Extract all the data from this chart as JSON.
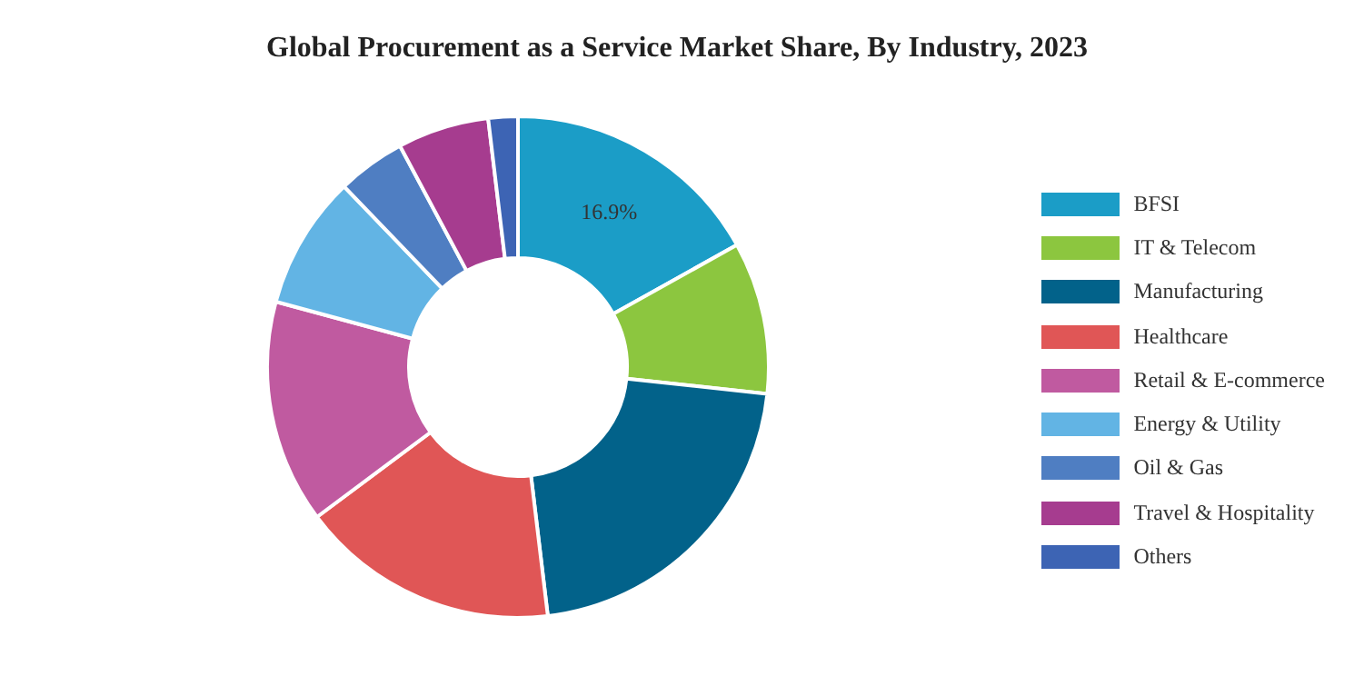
{
  "chart_data": {
    "type": "donut",
    "title": "Global Procurement as a Service Market Share, By Industry, 2023",
    "categories": [
      "BFSI",
      "IT & Telecom",
      "Manufacturing",
      "Healthcare",
      "Retail & E-commerce",
      "Energy & Utility",
      "Oil & Gas",
      "Travel & Hospitality",
      "Others"
    ],
    "values": [
      16.9,
      9.8,
      21.4,
      16.7,
      14.4,
      8.6,
      4.4,
      5.9,
      1.9
    ],
    "colors": [
      "#1b9dc7",
      "#8cc63f",
      "#02628a",
      "#e05656",
      "#c05aa0",
      "#62b4e4",
      "#4f7ec2",
      "#a63c8f",
      "#3d64b4"
    ],
    "value_labels": [
      "16.9%",
      null,
      null,
      null,
      null,
      null,
      null,
      null,
      null
    ],
    "legend": "right"
  }
}
